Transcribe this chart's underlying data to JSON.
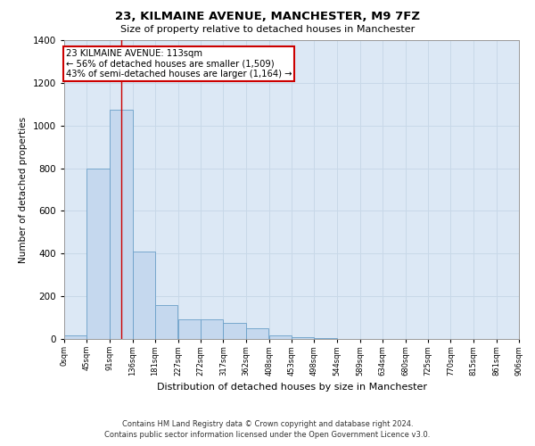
{
  "title1": "23, KILMAINE AVENUE, MANCHESTER, M9 7FZ",
  "title2": "Size of property relative to detached houses in Manchester",
  "xlabel": "Distribution of detached houses by size in Manchester",
  "ylabel": "Number of detached properties",
  "annotation_title": "23 KILMAINE AVENUE: 113sqm",
  "annotation_line1": "← 56% of detached houses are smaller (1,509)",
  "annotation_line2": "43% of semi-detached houses are larger (1,164) →",
  "footer1": "Contains HM Land Registry data © Crown copyright and database right 2024.",
  "footer2": "Contains public sector information licensed under the Open Government Licence v3.0.",
  "bar_edges": [
    0,
    45,
    91,
    136,
    181,
    227,
    272,
    317,
    362,
    408,
    453,
    498,
    544,
    589,
    634,
    680,
    725,
    770,
    815,
    861,
    906
  ],
  "bar_heights": [
    18,
    800,
    1075,
    410,
    160,
    90,
    90,
    75,
    50,
    18,
    8,
    5,
    0,
    0,
    0,
    0,
    0,
    0,
    0,
    0
  ],
  "bar_color": "#c5d8ee",
  "bar_edge_color": "#6a9fc8",
  "grid_color": "#c8d8e8",
  "background_color": "#dce8f5",
  "red_line_x": 113,
  "annotation_box_color": "#ffffff",
  "annotation_box_edge": "#cc0000",
  "red_line_color": "#cc0000",
  "ylim": [
    0,
    1400
  ],
  "yticks": [
    0,
    200,
    400,
    600,
    800,
    1000,
    1200,
    1400
  ],
  "xtick_labels": [
    "0sqm",
    "45sqm",
    "91sqm",
    "136sqm",
    "181sqm",
    "227sqm",
    "272sqm",
    "317sqm",
    "362sqm",
    "408sqm",
    "453sqm",
    "498sqm",
    "544sqm",
    "589sqm",
    "634sqm",
    "680sqm",
    "725sqm",
    "770sqm",
    "815sqm",
    "861sqm",
    "906sqm"
  ]
}
